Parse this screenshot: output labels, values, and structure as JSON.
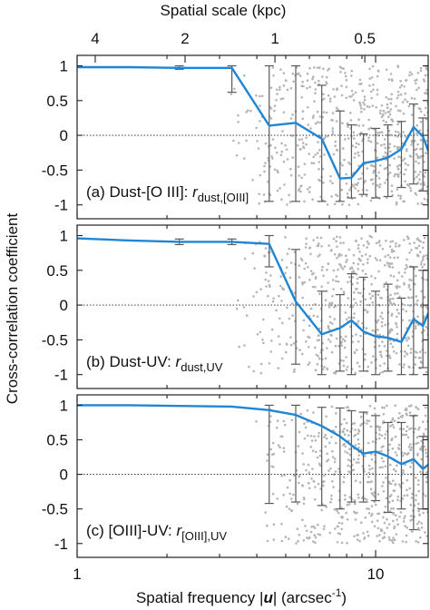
{
  "chart_data": {
    "type": "line",
    "layout": "three vertically stacked panels sharing a log-scale x axis",
    "xlabel_prefix": "Spatial frequency |",
    "xlabel_var": "u",
    "xlabel_suffix": "| (arcsec",
    "xlabel_sup": "-1",
    "xlabel_close": ")",
    "top_axis_label": "Spatial scale (kpc)",
    "ylabel": "Cross-correlation coefficient",
    "xscale": "log",
    "xlim": [
      1,
      15
    ],
    "ylim": [
      -1.2,
      1.15
    ],
    "xticks_major": [
      {
        "value": 1,
        "label": "1"
      },
      {
        "value": 10,
        "label": "10"
      }
    ],
    "xticks_minor": [
      2,
      3,
      4,
      5,
      6,
      7,
      8,
      9
    ],
    "yticks": [
      {
        "value": 1,
        "label": "1"
      },
      {
        "value": 0.5,
        "label": "0.5"
      },
      {
        "value": 0,
        "label": "0"
      },
      {
        "value": -0.5,
        "label": "-0.5"
      },
      {
        "value": -1,
        "label": "-1"
      }
    ],
    "top_ticks": [
      {
        "freq": 1.15,
        "label": "4"
      },
      {
        "freq": 2.3,
        "label": "2"
      },
      {
        "freq": 4.6,
        "label": "1"
      },
      {
        "freq": 9.2,
        "label": "0.5"
      }
    ],
    "reference_line_y": 0,
    "panels": [
      {
        "id": "a",
        "label_prefix": "(a) Dust-[O III]: ",
        "label_var": "r",
        "label_sub": "dust,[OIII]",
        "series": [
          {
            "x": [
              1.0,
              1.5,
              2.2,
              3.3,
              4.4,
              5.4,
              6.6,
              7.6,
              8.3,
              9.1,
              10.0,
              11.0,
              12.2,
              13.4,
              14.4,
              15.0
            ],
            "y": [
              0.98,
              0.98,
              0.97,
              0.97,
              0.14,
              0.18,
              -0.05,
              -0.62,
              -0.61,
              -0.4,
              -0.37,
              -0.32,
              -0.2,
              0.12,
              -0.02,
              -0.22
            ],
            "err_x": [
              2.2,
              3.3,
              4.4,
              5.4,
              6.6,
              7.6,
              8.3,
              9.1,
              10.0,
              11.0,
              12.2,
              13.4,
              14.4
            ],
            "err_lo": [
              0.95,
              0.62,
              -0.95,
              -0.95,
              -0.95,
              -0.95,
              -0.9,
              -0.85,
              -0.9,
              -0.88,
              -0.75,
              -0.7,
              -0.8
            ],
            "err_hi": [
              1.0,
              1.0,
              1.0,
              1.0,
              0.72,
              0.35,
              0.15,
              0.02,
              0.1,
              0.15,
              0.2,
              0.45,
              0.25
            ]
          }
        ]
      },
      {
        "id": "b",
        "label_prefix": "(b) Dust-UV: ",
        "label_var": "r",
        "label_sub": "dust,UV",
        "series": [
          {
            "x": [
              1.0,
              1.5,
              2.2,
              3.3,
              4.4,
              5.4,
              6.6,
              7.6,
              8.3,
              9.1,
              10.0,
              11.0,
              12.2,
              13.4,
              14.4,
              15.0
            ],
            "y": [
              0.96,
              0.93,
              0.91,
              0.91,
              0.88,
              0.05,
              -0.42,
              -0.33,
              -0.22,
              -0.38,
              -0.45,
              -0.47,
              -0.53,
              -0.2,
              -0.3,
              -0.12
            ],
            "err_x": [
              2.2,
              3.3,
              4.4,
              5.4,
              6.6,
              7.6,
              8.3,
              9.1,
              10.0,
              11.0,
              12.2,
              13.4,
              14.4
            ],
            "err_lo": [
              0.87,
              0.87,
              0.55,
              -0.85,
              -1.0,
              -0.95,
              -1.0,
              -0.95,
              -1.0,
              -0.95,
              -1.0,
              -1.0,
              -0.9
            ],
            "err_hi": [
              0.95,
              0.95,
              1.0,
              0.8,
              0.2,
              0.15,
              0.45,
              0.4,
              0.2,
              0.3,
              0.1,
              0.55,
              0.5
            ]
          }
        ]
      },
      {
        "id": "c",
        "label_prefix": "(c) [OIII]-UV: ",
        "label_var": "r",
        "label_sub": "[OIII],UV",
        "series": [
          {
            "x": [
              1.0,
              1.5,
              2.2,
              3.3,
              4.4,
              5.4,
              6.6,
              7.6,
              8.3,
              9.1,
              10.0,
              11.0,
              12.2,
              13.4,
              14.4,
              15.0
            ],
            "y": [
              1.0,
              1.0,
              0.99,
              0.98,
              0.93,
              0.86,
              0.7,
              0.55,
              0.42,
              0.3,
              0.33,
              0.26,
              0.15,
              0.22,
              0.08,
              0.14
            ],
            "err_x": [
              4.4,
              5.4,
              6.6,
              7.6,
              8.3,
              9.1,
              10.0,
              11.0,
              12.2,
              13.4,
              14.4
            ],
            "err_lo": [
              -0.42,
              -0.4,
              -0.45,
              -0.5,
              -0.4,
              -0.4,
              -0.38,
              -0.55,
              -0.5,
              -0.8,
              -0.5
            ],
            "err_hi": [
              1.0,
              1.0,
              0.97,
              0.96,
              0.92,
              0.9,
              0.85,
              0.75,
              0.75,
              0.85,
              0.55
            ]
          }
        ]
      }
    ],
    "scatter": {
      "color": "#b5b5b5",
      "note_values": "dense cloud of individual data points behind each panel, x from about 3.2 to 15, y from -1 to 1"
    },
    "colors": {
      "series": "#1f86d6",
      "error_bars": "#5a5a5a",
      "scatter": "#b5b5b5",
      "frame": "#222222"
    },
    "grid": false,
    "legend": "none"
  }
}
